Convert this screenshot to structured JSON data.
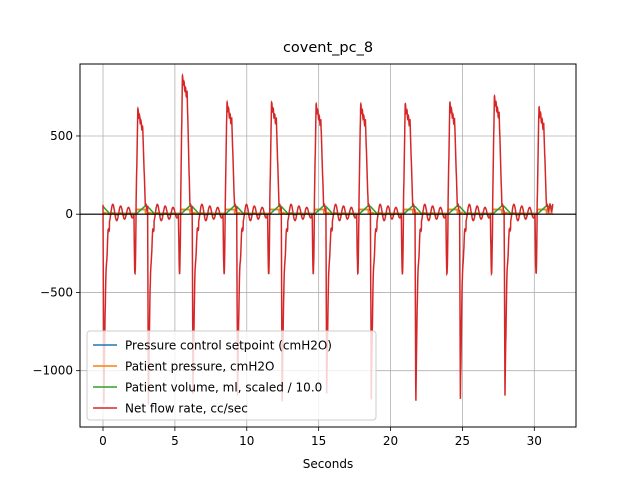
{
  "chart_data": {
    "type": "line",
    "title": "covent_pc_8",
    "xlabel": "Seconds",
    "ylabel": "",
    "xlim": [
      -1.6,
      32.9
    ],
    "ylim": [
      -1360,
      960
    ],
    "xticks": [
      0,
      5,
      10,
      15,
      20,
      25,
      30
    ],
    "xtick_labels": [
      "0",
      "5",
      "10",
      "15",
      "20",
      "25",
      "30"
    ],
    "yticks": [
      -1000,
      -500,
      0,
      500
    ],
    "ytick_labels": [
      "−1000",
      "−500",
      "0",
      "500"
    ],
    "grid": true,
    "zero_line": true,
    "legend_position": "lower-left",
    "breath_period_s": 3.1,
    "breath_starts_s": [
      0.0,
      3.1,
      6.2,
      9.3,
      12.4,
      15.5,
      18.6,
      21.7,
      24.8,
      27.9
    ],
    "x_end": 31.3,
    "series": [
      {
        "name": "Pressure control setpoint (cmH2O)",
        "color": "#1f77b4",
        "description_levels": {
          "high": 30,
          "low": 5
        }
      },
      {
        "name": "Patient pressure, cmH2O",
        "color": "#ff7f0e",
        "description_levels": {
          "high": 30,
          "low": 5
        }
      },
      {
        "name": "Patient volume, ml, scaled / 10.0",
        "color": "#2ca02c",
        "description_levels": {
          "peak": 50,
          "low": 0
        }
      },
      {
        "name": "Net flow rate, cc/sec",
        "color": "#d62728",
        "inspiratory_peaks": [
          660,
          870,
          700,
          700,
          690,
          690,
          690,
          700,
          740,
          670
        ],
        "expiratory_troughs": [
          -1220,
          -1220,
          -1150,
          -1180,
          -1220,
          -1170,
          -1210,
          -1220,
          -1210,
          -1190,
          -1220
        ],
        "baseline_oscillation": 60
      }
    ]
  }
}
